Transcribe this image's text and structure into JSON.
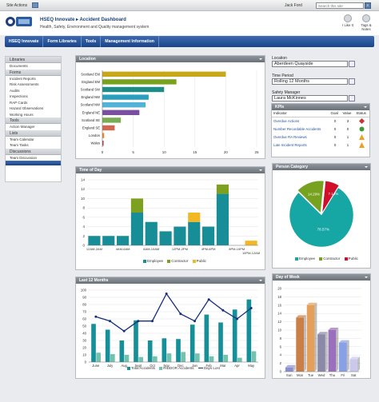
{
  "topbar": {
    "site_actions": "Site Actions",
    "user": "Jack Ford",
    "search_placeholder": "Search this site"
  },
  "header": {
    "crumb": "HSEQ Innovate ▸ Accident Dashboard",
    "subtitle": "Health, Safety, Environment and Quality management system",
    "like_label": "I Like It",
    "tags_label": "Tags & Notes"
  },
  "nav": [
    "HSEQ Innovate",
    "Form Libraries",
    "Tools",
    "Management Information"
  ],
  "sidebar": {
    "libraries": "Libraries",
    "documents": "Documents",
    "forms": "Forms",
    "form_items": [
      "Incident Reports",
      "Risk Assessments",
      "Audits",
      "Inspections",
      "RAP Cards",
      "Hazard Observations",
      "Working Hours"
    ],
    "tools": "Tools",
    "tool_items": [
      "Action Manager"
    ],
    "lists": "Lists",
    "list_items": [
      "Team Calendar",
      "Team Tasks"
    ],
    "discussions": "Discussions",
    "discussion_items": [
      "Team Discussion"
    ]
  },
  "filters": {
    "location_label": "Location",
    "location_value": "Aberdeen Quayside",
    "period_label": "Time Period",
    "period_value": "Rolling 12 Months",
    "manager_label": "Safety Manager",
    "manager_value": "Laura McKinnes"
  },
  "kpis": {
    "title": "KPIs",
    "headers": [
      "Indicator",
      "Goal",
      "Value",
      "Status"
    ],
    "rows": [
      {
        "name": "Overdue Actions",
        "goal": "0",
        "value": "3",
        "status": "#d03030"
      },
      {
        "name": "Number Recordable Accidents",
        "goal": "0",
        "value": "0",
        "status": "#3f9a3a"
      },
      {
        "name": "Overdue RA Reviews",
        "goal": "0",
        "value": "1",
        "status": "#f0a020"
      },
      {
        "name": "Late Incident Reports",
        "goal": "0",
        "value": "1",
        "status": "#f0a020"
      }
    ]
  },
  "panels": {
    "location": "Location",
    "time": "Time of Day",
    "last12": "Last 12 Months",
    "person": "Person Category",
    "dow": "Day of Week"
  },
  "chart_data": [
    {
      "id": "location",
      "type": "bar",
      "orientation": "horizontal",
      "categories": [
        "Scotland EM",
        "England EM",
        "Scotland SW",
        "England NW",
        "Scotland NW",
        "England NE",
        "Scotland SE",
        "England SE",
        "London",
        "Wales"
      ],
      "values": [
        20,
        12,
        10,
        7.5,
        7,
        6,
        3,
        2,
        0.3,
        0.2
      ],
      "colors": [
        "#c8a81b",
        "#78a21d",
        "#1b8c86",
        "#2a9fbd",
        "#53b3d6",
        "#7a4fa0",
        "#7aac52",
        "#d2664f",
        "#e68a2e",
        "#b83a3a"
      ],
      "xlim": [
        0,
        25
      ],
      "xticks": [
        0,
        5,
        10,
        15,
        20,
        25
      ]
    },
    {
      "id": "time",
      "type": "bar",
      "stacked": true,
      "categories": [
        "12AM-2AM",
        "2AM-4AM",
        "4AM-6AM",
        "6AM-8AM",
        "8AM-10AM",
        "10AM-12PM",
        "12PM-2PM",
        "2PM-4PM",
        "4PM-6PM",
        "6PM-8PM",
        "8PM-10PM",
        "10PM-12AM"
      ],
      "xlabels": [
        "12AM-2AM",
        "",
        "4AM-6AM",
        "",
        "8AM-10AM",
        "",
        "12PM-2PM",
        "",
        "4PM-6PM",
        "",
        "8PM-10PM\n10PM-12AM",
        ""
      ],
      "series": [
        {
          "name": "Employee",
          "color": "#178e97",
          "values": [
            2,
            2,
            2,
            7,
            5,
            3,
            4,
            5,
            4,
            11,
            0,
            0
          ]
        },
        {
          "name": "Contractor",
          "color": "#7da01f",
          "values": [
            0,
            0,
            0,
            3,
            0,
            0,
            0,
            0,
            0,
            2,
            0,
            0
          ]
        },
        {
          "name": "Public",
          "color": "#f2b823",
          "values": [
            0,
            0,
            0,
            0,
            0,
            0,
            0,
            2,
            0,
            0,
            0,
            1
          ]
        }
      ],
      "ylim": [
        0,
        14
      ],
      "yticks": [
        0,
        2,
        4,
        6,
        8,
        10,
        12,
        14
      ],
      "legend": [
        "Employee",
        "Contractor",
        "Public"
      ]
    },
    {
      "id": "last12",
      "type": "bar+line",
      "categories": [
        "June",
        "July",
        "Aug",
        "Sept",
        "Oct",
        "Nov",
        "Dec",
        "Jan",
        "Feb",
        "Mar",
        "Apr",
        "May"
      ],
      "series": [
        {
          "name": "Total Accidents",
          "color": "#158f98",
          "values": [
            53,
            45,
            30,
            58,
            30,
            33,
            32,
            52,
            66,
            55,
            73,
            87
          ]
        },
        {
          "name": "RIDDOR Accidents",
          "color": "#72c2b0",
          "values": [
            13,
            11,
            10,
            7,
            8,
            12,
            14,
            12,
            8,
            10,
            6,
            15
          ]
        },
        {
          "name": "Days Lost",
          "type": "line",
          "color": "#15307a",
          "values": [
            63,
            57,
            43,
            57,
            57,
            95,
            67,
            57,
            87,
            72,
            60,
            75
          ]
        }
      ],
      "ylim": [
        0,
        100
      ],
      "yticks": [
        0,
        10,
        20,
        30,
        40,
        50,
        60,
        70,
        80,
        90,
        100
      ],
      "legend": [
        "Total Accidents",
        "RIDDOR Accidents",
        "Days Lost"
      ]
    },
    {
      "id": "person",
      "type": "pie",
      "slices": [
        {
          "name": "Employee",
          "value": 78.57,
          "label": "78.57%",
          "color": "#16a6a4"
        },
        {
          "name": "Contractor",
          "value": 14.29,
          "label": "14.29%",
          "color": "#76a21f"
        },
        {
          "name": "Public",
          "value": 7.14,
          "label": "7.14%",
          "color": "#d0102a"
        }
      ],
      "legend": [
        "Employee",
        "Contractor",
        "Public"
      ]
    },
    {
      "id": "dow",
      "type": "bar",
      "style": "3d",
      "categories": [
        "Sun",
        "Mon",
        "Tue",
        "Wed",
        "Thu",
        "Fri",
        "Sat"
      ],
      "values": [
        1,
        13,
        16,
        9,
        10,
        7,
        3
      ],
      "colors": [
        "#8a8fd2",
        "#c97f46",
        "#e4a05a",
        "#8a8aa8",
        "#9a6fbc",
        "#87a0e6",
        "#c9c9ee"
      ],
      "ylim": [
        0,
        20
      ],
      "yticks": [
        0,
        2,
        4,
        6,
        8,
        10,
        12,
        14,
        16,
        18,
        20
      ]
    }
  ]
}
